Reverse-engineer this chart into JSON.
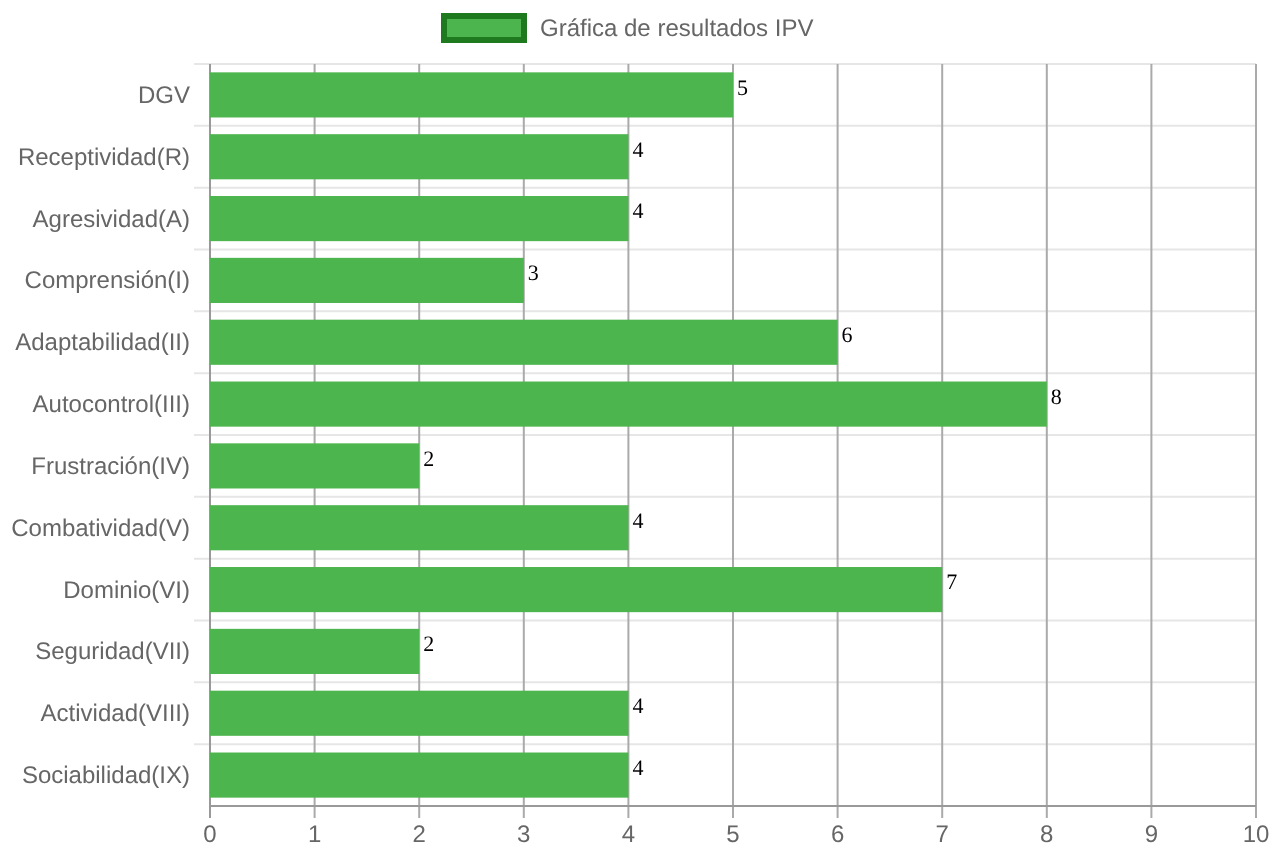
{
  "chart_data": {
    "type": "bar",
    "orientation": "horizontal",
    "categories": [
      "DGV",
      "Receptividad(R)",
      "Agresividad(A)",
      "Comprensión(I)",
      "Adaptabilidad(II)",
      "Autocontrol(III)",
      "Frustración(IV)",
      "Combatividad(V)",
      "Dominio(VI)",
      "Seguridad(VII)",
      "Actividad(VIII)",
      "Sociabilidad(IX)"
    ],
    "series": [
      {
        "name": "Gráfica de resultados IPV",
        "color": "#4db54d",
        "values": [
          5,
          4,
          4,
          3,
          6,
          8,
          2,
          4,
          7,
          2,
          4,
          4
        ]
      }
    ],
    "xlim": [
      0,
      10
    ],
    "xticks": [
      0,
      1,
      2,
      3,
      4,
      5,
      6,
      7,
      8,
      9,
      10
    ],
    "grid": true,
    "legend": "top",
    "data_labels": true
  }
}
